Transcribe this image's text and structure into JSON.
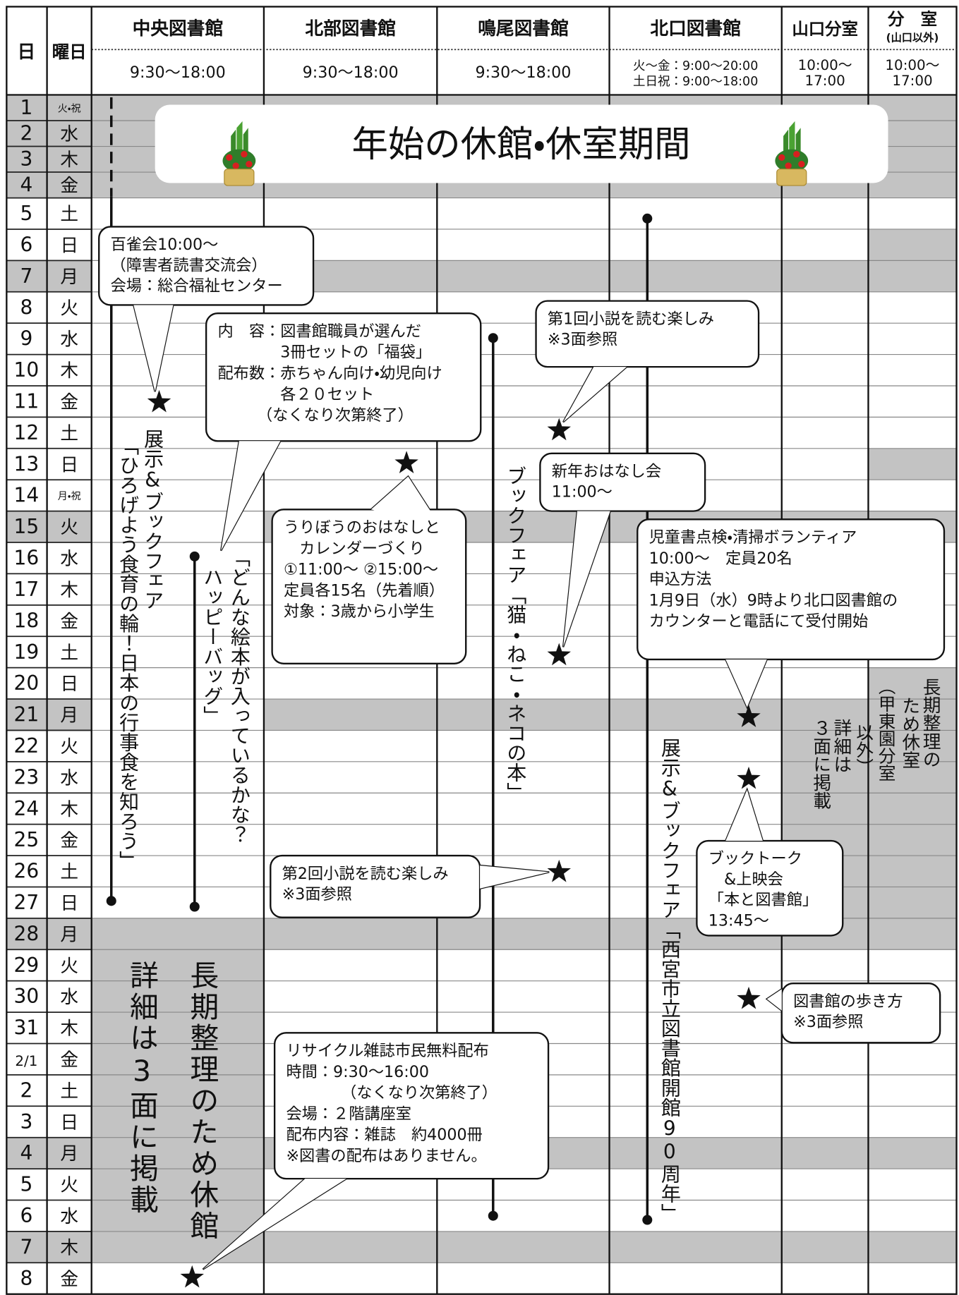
{
  "header": {
    "day_label": "日",
    "weekday_label": "曜日",
    "libraries": [
      {
        "name": "中央図書館",
        "hours": [
          "9:30〜18:00"
        ]
      },
      {
        "name": "北部図書館",
        "hours": [
          "9:30〜18:00"
        ]
      },
      {
        "name": "鳴尾図書館",
        "hours": [
          "9:30〜18:00"
        ]
      },
      {
        "name": "北口図書館",
        "hours": [
          "火〜金：9:00〜20:00",
          "土日祝：9:00〜18:00"
        ]
      },
      {
        "name": "山口分室",
        "hours": [
          "10:00〜",
          "17:00"
        ]
      },
      {
        "name": "分　室",
        "sub": "(山口以外)",
        "hours": [
          "10:00〜",
          "17:00"
        ]
      }
    ]
  },
  "rows": [
    {
      "day": "1",
      "weekday": "火・祝"
    },
    {
      "day": "2",
      "weekday": "水"
    },
    {
      "day": "3",
      "weekday": "木"
    },
    {
      "day": "4",
      "weekday": "金"
    },
    {
      "day": "5",
      "weekday": "土"
    },
    {
      "day": "6",
      "weekday": "日"
    },
    {
      "day": "7",
      "weekday": "月"
    },
    {
      "day": "8",
      "weekday": "火"
    },
    {
      "day": "9",
      "weekday": "水"
    },
    {
      "day": "10",
      "weekday": "木"
    },
    {
      "day": "11",
      "weekday": "金"
    },
    {
      "day": "12",
      "weekday": "土"
    },
    {
      "day": "13",
      "weekday": "日"
    },
    {
      "day": "14",
      "weekday": "月・祝"
    },
    {
      "day": "15",
      "weekday": "火"
    },
    {
      "day": "16",
      "weekday": "水"
    },
    {
      "day": "17",
      "weekday": "木"
    },
    {
      "day": "18",
      "weekday": "金"
    },
    {
      "day": "19",
      "weekday": "土"
    },
    {
      "day": "20",
      "weekday": "日"
    },
    {
      "day": "21",
      "weekday": "月"
    },
    {
      "day": "22",
      "weekday": "火"
    },
    {
      "day": "23",
      "weekday": "水"
    },
    {
      "day": "24",
      "weekday": "木"
    },
    {
      "day": "25",
      "weekday": "金"
    },
    {
      "day": "26",
      "weekday": "土"
    },
    {
      "day": "27",
      "weekday": "日"
    },
    {
      "day": "28",
      "weekday": "月"
    },
    {
      "day": "29",
      "weekday": "火"
    },
    {
      "day": "30",
      "weekday": "水"
    },
    {
      "day": "31",
      "weekday": "木"
    },
    {
      "day": "2/1",
      "weekday": "金"
    },
    {
      "day": "2",
      "weekday": "土"
    },
    {
      "day": "3",
      "weekday": "日"
    },
    {
      "day": "4",
      "weekday": "月"
    },
    {
      "day": "5",
      "weekday": "火"
    },
    {
      "day": "6",
      "weekday": "水"
    },
    {
      "day": "7",
      "weekday": "木"
    },
    {
      "day": "8",
      "weekday": "金"
    }
  ],
  "banner": "年始の休館・休室期間",
  "vertical_texts": [
    {
      "lines": [
        "展示&ブックフェア",
        "「ひろげよう食育の輪！日本の行事食を知ろう」"
      ]
    },
    {
      "lines": [
        "「どんな絵本が入っているかな？",
        "ハッピーバッグ」"
      ]
    },
    {
      "lines": [
        "ブックフェア「猫・ねこ・ネコの本」"
      ]
    },
    {
      "lines": [
        "展示&ブックフェア「西宮市立図書館開館90周年」"
      ]
    },
    {
      "lines": [
        "長期整理のため休館",
        "詳細は3面に掲載"
      ]
    },
    {
      "lines": [
        "長期整理の",
        "ため休室",
        "（甲東園分室",
        "以外）",
        "詳細は",
        "３面に掲載"
      ]
    }
  ],
  "callouts": [
    {
      "lines": [
        "百雀会10:00〜",
        "（障害者読書交流会）",
        "会場：総合福祉センター"
      ]
    },
    {
      "lines": [
        "内　容：図書館職員が選んだ",
        "　　　　3冊セットの「福袋」",
        "配布数：赤ちゃん向け・幼児向け",
        "　　　　各２０セット",
        "　　　（なくなり次第終了）"
      ]
    },
    {
      "lines": [
        "第1回小説を読む楽しみ",
        "※3面参照"
      ]
    },
    {
      "lines": [
        "新年おはなし会",
        "11:00〜"
      ]
    },
    {
      "lines": [
        "うりぼうのおはなしと",
        "　カレンダーづくり",
        "①11:00〜 ②15:00〜",
        "定員各15名（先着順）",
        "対象：3歳から小学生"
      ]
    },
    {
      "lines": [
        "児童書点検・清掃ボランティア",
        "10:00〜　定員20名",
        "申込方法",
        "1月9日（水）9時より北口図書館の",
        "カウンターと電話にて受付開始"
      ]
    },
    {
      "lines": [
        "ブックトーク",
        "　&上映会",
        "「本と図書館」",
        "13:45〜"
      ]
    },
    {
      "lines": [
        "第2回小説を読む楽しみ",
        "※3面参照"
      ]
    },
    {
      "lines": [
        "図書館の歩き方",
        "※3面参照"
      ]
    },
    {
      "lines": [
        "リサイクル雑誌市民無料配布",
        "時間：9:30〜16:00",
        "　　　　（なくなり次第終了）",
        "会場：２階講座室",
        "配布内容：雑誌　約4000冊",
        "※図書の配布はありません。"
      ]
    }
  ]
}
